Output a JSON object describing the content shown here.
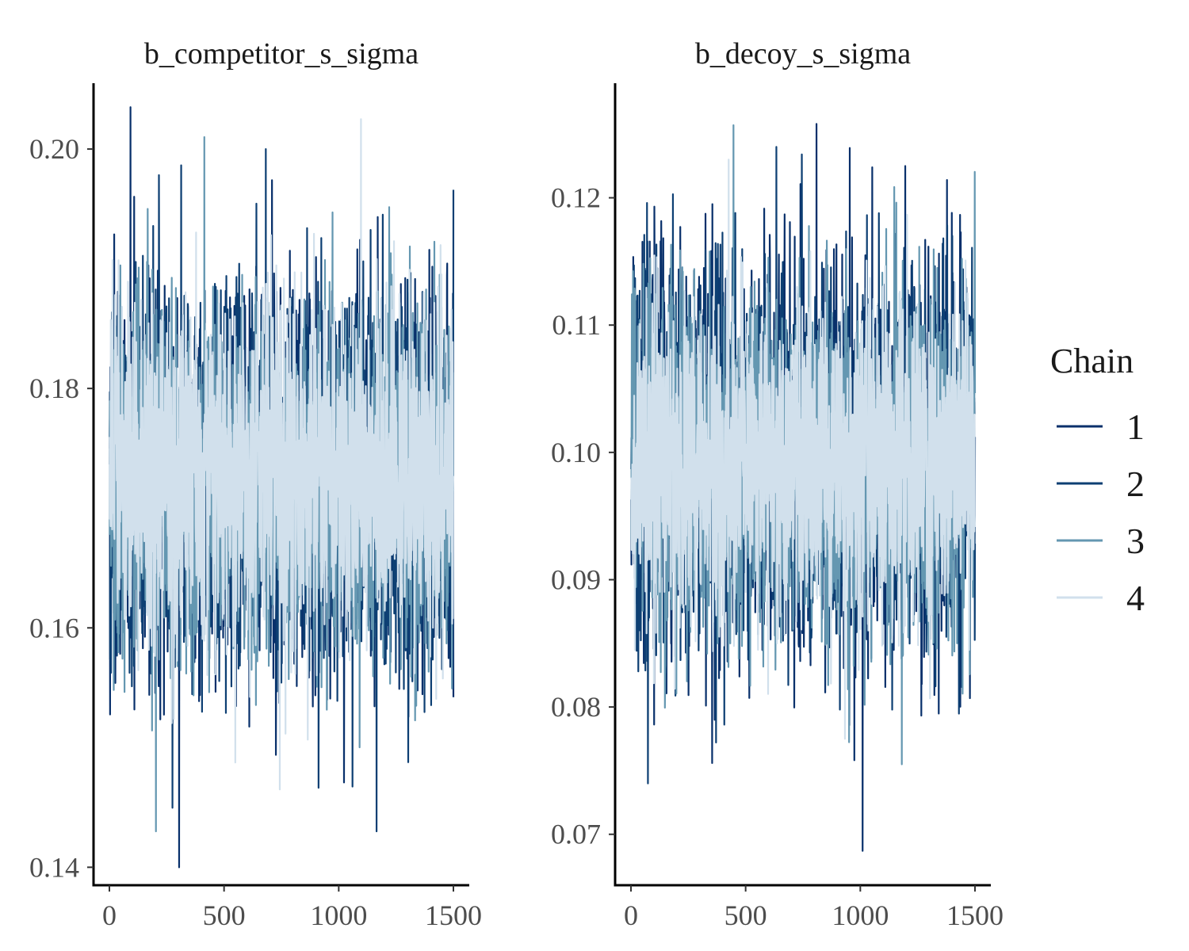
{
  "chart_data": {
    "type": "line",
    "legend": {
      "title": "Chain",
      "position": "right",
      "entries": [
        {
          "label": "1",
          "color": "#08306b"
        },
        {
          "label": "2",
          "color": "#0d3f73"
        },
        {
          "label": "3",
          "color": "#6497b1"
        },
        {
          "label": "4",
          "color": "#d1e0ec"
        }
      ]
    },
    "iterations": 1500,
    "panels": [
      {
        "title": "b_competitor_s_sigma",
        "xlim": [
          0,
          1500
        ],
        "ylim": [
          0.1385,
          0.2055
        ],
        "xticks": [
          {
            "value": 0,
            "label": "0"
          },
          {
            "value": 500,
            "label": "500"
          },
          {
            "value": 1000,
            "label": "1000"
          },
          {
            "value": 1500,
            "label": "1500"
          }
        ],
        "yticks": [
          {
            "value": 0.14,
            "label": "0.14"
          },
          {
            "value": 0.16,
            "label": "0.16"
          },
          {
            "value": 0.18,
            "label": "0.18"
          },
          {
            "value": 0.2,
            "label": "0.20"
          }
        ],
        "series": [
          {
            "name": "1",
            "mean": 0.1725,
            "sd": 0.0078,
            "min": 0.14,
            "max": 0.2035
          },
          {
            "name": "2",
            "mean": 0.1725,
            "sd": 0.0075,
            "min": 0.143,
            "max": 0.2
          },
          {
            "name": "3",
            "mean": 0.1725,
            "sd": 0.0072,
            "min": 0.143,
            "max": 0.201
          },
          {
            "name": "4",
            "mean": 0.1725,
            "sd": 0.0068,
            "min": 0.1465,
            "max": 0.2025
          }
        ]
      },
      {
        "title": "b_decoy_s_sigma",
        "xlim": [
          0,
          1500
        ],
        "ylim": [
          0.066,
          0.129
        ],
        "xticks": [
          {
            "value": 0,
            "label": "0"
          },
          {
            "value": 500,
            "label": "500"
          },
          {
            "value": 1000,
            "label": "1000"
          },
          {
            "value": 1500,
            "label": "1500"
          }
        ],
        "yticks": [
          {
            "value": 0.07,
            "label": "0.07"
          },
          {
            "value": 0.08,
            "label": "0.08"
          },
          {
            "value": 0.09,
            "label": "0.09"
          },
          {
            "value": 0.1,
            "label": "0.10"
          },
          {
            "value": 0.11,
            "label": "0.11"
          },
          {
            "value": 0.12,
            "label": "0.12"
          }
        ],
        "series": [
          {
            "name": "1",
            "mean": 0.0995,
            "sd": 0.0075,
            "min": 0.0687,
            "max": 0.1258
          },
          {
            "name": "2",
            "mean": 0.0995,
            "sd": 0.0072,
            "min": 0.074,
            "max": 0.124
          },
          {
            "name": "3",
            "mean": 0.0995,
            "sd": 0.0068,
            "min": 0.0755,
            "max": 0.1257
          },
          {
            "name": "4",
            "mean": 0.0995,
            "sd": 0.0064,
            "min": 0.0775,
            "max": 0.123
          }
        ]
      }
    ]
  }
}
